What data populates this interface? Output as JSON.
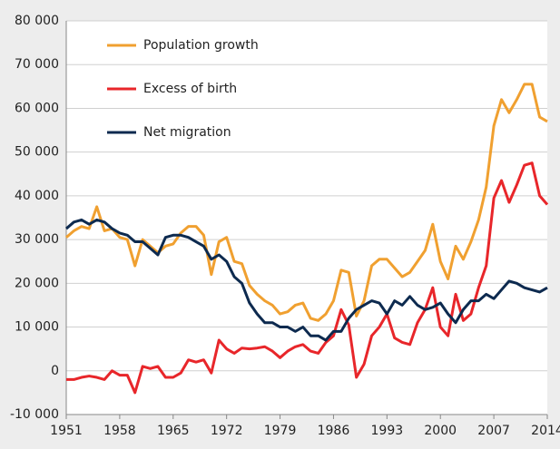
{
  "chart_data": {
    "type": "line",
    "x": [
      1951,
      1952,
      1953,
      1954,
      1955,
      1956,
      1957,
      1958,
      1959,
      1960,
      1961,
      1962,
      1963,
      1964,
      1965,
      1966,
      1967,
      1968,
      1969,
      1970,
      1971,
      1972,
      1973,
      1974,
      1975,
      1976,
      1977,
      1978,
      1979,
      1980,
      1981,
      1982,
      1983,
      1984,
      1985,
      1986,
      1987,
      1988,
      1989,
      1990,
      1991,
      1992,
      1993,
      1994,
      1995,
      1996,
      1997,
      1998,
      1999,
      2000,
      2001,
      2002,
      2003,
      2004,
      2005,
      2006,
      2007,
      2008,
      2009,
      2010,
      2011,
      2012,
      2013,
      2014
    ],
    "series": [
      {
        "name": "Population growth",
        "color": "#f0a030",
        "values": [
          30500,
          32000,
          33000,
          32500,
          37500,
          32000,
          32500,
          30500,
          30000,
          24000,
          30000,
          28500,
          27000,
          28500,
          29000,
          31500,
          33000,
          33000,
          31000,
          22000,
          29500,
          30500,
          25000,
          24500,
          19500,
          17500,
          16000,
          15000,
          13000,
          13500,
          15000,
          15500,
          12000,
          11500,
          13000,
          16000,
          23000,
          22500,
          12500,
          16000,
          24000,
          25500,
          25500,
          23500,
          21500,
          22500,
          25000,
          27500,
          33500,
          25000,
          21000,
          28500,
          25500,
          29500,
          34500,
          42000,
          56000,
          62000,
          59000,
          62000,
          65500,
          65500,
          58000,
          57000
        ]
      },
      {
        "name": "Excess of birth",
        "color": "#e8262a",
        "values": [
          -2000,
          -2000,
          -1500,
          -1200,
          -1500,
          -2000,
          0,
          -1000,
          -1000,
          -5000,
          1000,
          500,
          1000,
          -1500,
          -1500,
          -500,
          2500,
          2000,
          2500,
          -500,
          7000,
          5000,
          4000,
          5200,
          5000,
          5200,
          5500,
          4500,
          3000,
          4500,
          5500,
          6000,
          4500,
          4000,
          6500,
          8000,
          14000,
          10500,
          -1500,
          1500,
          8000,
          10000,
          13000,
          7500,
          6500,
          6000,
          11000,
          14000,
          19000,
          10000,
          8000,
          17500,
          11500,
          13000,
          19000,
          24000,
          39500,
          43500,
          38500,
          42500,
          47000,
          47500,
          40000,
          38000
        ]
      },
      {
        "name": "Net migration",
        "color": "#0d2a4f",
        "values": [
          32500,
          34000,
          34500,
          33500,
          34500,
          34000,
          32500,
          31500,
          31000,
          29500,
          29500,
          28000,
          26500,
          30500,
          31000,
          31000,
          30500,
          29500,
          28500,
          25500,
          26500,
          25000,
          21500,
          20000,
          15500,
          13000,
          11000,
          11000,
          10000,
          10000,
          9000,
          10000,
          8000,
          8000,
          7000,
          9000,
          9000,
          12000,
          14000,
          15000,
          16000,
          15500,
          13000,
          16000,
          15000,
          17000,
          15000,
          14000,
          14500,
          15500,
          13000,
          11000,
          14000,
          16000,
          16000,
          17500,
          16500,
          18500,
          20500,
          20000,
          19000,
          18500,
          18000,
          19000
        ]
      }
    ],
    "xlim": [
      1951,
      2014
    ],
    "xticks": [
      1951,
      1958,
      1965,
      1972,
      1979,
      1986,
      1993,
      2000,
      2007,
      2014
    ],
    "ylim": [
      -10000,
      80000
    ],
    "yticks": [
      {
        "value": -10000,
        "label": "-10 000"
      },
      0,
      {
        "value": 10000,
        "label": "10 000"
      },
      {
        "value": 20000,
        "label": "20 000"
      },
      {
        "value": 30000,
        "label": "30 000"
      },
      {
        "value": 40000,
        "label": "40 000"
      },
      {
        "value": 50000,
        "label": "50 000"
      },
      {
        "value": 60000,
        "label": "60 000"
      },
      {
        "value": 70000,
        "label": "70 000"
      },
      {
        "value": 80000,
        "label": "80 000"
      }
    ],
    "grid": true,
    "legend": "upper-left"
  }
}
